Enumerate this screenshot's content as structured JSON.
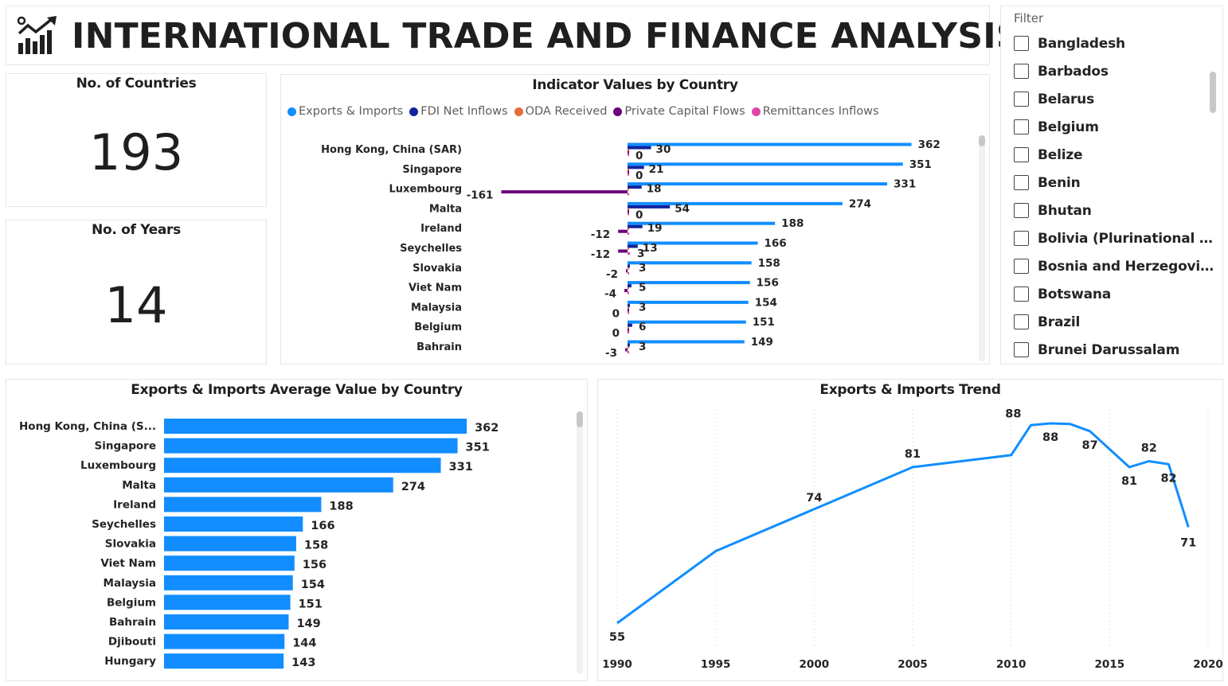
{
  "header": {
    "title": "INTERNATIONAL TRADE AND FINANCE ANALYSIS",
    "logo_icon": "chart-trend-icon"
  },
  "kpis": {
    "countries": {
      "label": "No. of Countries",
      "value": "193"
    },
    "years": {
      "label": "No. of Years",
      "value": "14"
    }
  },
  "colors": {
    "exports": "#118DFF",
    "fdi": "#12239E",
    "oda": "#E66C37",
    "private": "#6B007B",
    "remit": "#E044A7"
  },
  "indicator_chart": {
    "title": "Indicator Values by Country",
    "legend": [
      "Exports & Imports",
      "FDI Net Inflows",
      "ODA Received",
      "Private Capital Flows",
      "Remittances Inflows"
    ]
  },
  "filter": {
    "label": "Filter",
    "items": [
      "Bangladesh",
      "Barbados",
      "Belarus",
      "Belgium",
      "Belize",
      "Benin",
      "Bhutan",
      "Bolivia (Plurinational State of)",
      "Bosnia and Herzegovina",
      "Botswana",
      "Brazil",
      "Brunei Darussalam"
    ]
  },
  "avg_chart": {
    "title": "Exports & Imports Average Value by Country"
  },
  "trend_chart": {
    "title": "Exports & Imports Trend"
  },
  "chart_data": [
    {
      "type": "bar",
      "orientation": "horizontal",
      "title": "Indicator Values by Country",
      "categories": [
        "Hong Kong, China (SAR)",
        "Singapore",
        "Luxembourg",
        "Malta",
        "Ireland",
        "Seychelles",
        "Slovakia",
        "Viet Nam",
        "Malaysia",
        "Belgium",
        "Bahrain"
      ],
      "series": [
        {
          "name": "Exports & Imports",
          "values": [
            362,
            351,
            331,
            274,
            188,
            166,
            158,
            156,
            154,
            151,
            149
          ]
        },
        {
          "name": "FDI Net Inflows",
          "values": [
            30,
            21,
            18,
            54,
            19,
            13,
            3,
            5,
            3,
            6,
            3
          ]
        },
        {
          "name": "ODA Received",
          "values": [
            0,
            0,
            0,
            0,
            0,
            0,
            0,
            0,
            0,
            0,
            0
          ]
        },
        {
          "name": "Private Capital Flows",
          "values": [
            0,
            0,
            -161,
            0,
            -12,
            -12,
            -2,
            -4,
            0,
            0,
            -3
          ]
        },
        {
          "name": "Remittances Inflows",
          "values": [
            0,
            0,
            0,
            0,
            0,
            3,
            0,
            0,
            0,
            0,
            0
          ]
        }
      ],
      "legend_position": "top-left"
    },
    {
      "type": "bar",
      "orientation": "horizontal",
      "title": "Exports & Imports Average Value by Country",
      "categories": [
        "Hong Kong, China (S...",
        "Singapore",
        "Luxembourg",
        "Malta",
        "Ireland",
        "Seychelles",
        "Slovakia",
        "Viet Nam",
        "Malaysia",
        "Belgium",
        "Bahrain",
        "Djibouti",
        "Hungary"
      ],
      "values": [
        362,
        351,
        331,
        274,
        188,
        166,
        158,
        156,
        154,
        151,
        149,
        144,
        143
      ]
    },
    {
      "type": "line",
      "title": "Exports & Imports Trend",
      "x": [
        1990,
        1995,
        2000,
        2005,
        2010,
        2011,
        2012,
        2013,
        2014,
        2015,
        2016,
        2017,
        2018,
        2019
      ],
      "y": [
        55,
        67,
        74,
        81,
        83,
        88,
        88.3,
        88.2,
        87,
        84,
        81,
        82,
        81.5,
        71
      ],
      "labels": [
        {
          "x": 1990,
          "text": "55"
        },
        {
          "x": 2000,
          "text": "74"
        },
        {
          "x": 2005,
          "text": "81"
        },
        {
          "x": 2011,
          "text": "88"
        },
        {
          "x": 2012,
          "text": "88"
        },
        {
          "x": 2014,
          "text": "87"
        },
        {
          "x": 2016,
          "text": "81"
        },
        {
          "x": 2017,
          "text": "82"
        },
        {
          "x": 2018,
          "text": "82"
        },
        {
          "x": 2019,
          "text": "71"
        }
      ],
      "xticks": [
        "1990",
        "1995",
        "2000",
        "2005",
        "2010",
        "2015",
        "2020"
      ],
      "xlim": [
        1990,
        2020
      ],
      "grid": "vertical dotted"
    }
  ]
}
